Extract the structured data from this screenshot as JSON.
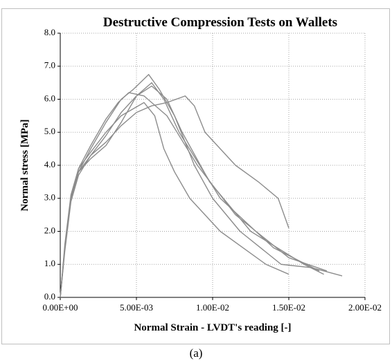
{
  "chart_data": {
    "type": "line",
    "title": "Destructive Compression Tests on Wallets",
    "x_label": "Normal Strain - LVDT's  reading [-]",
    "y_label": "Normal stress [MPa]",
    "xlim": [
      0,
      0.02
    ],
    "ylim": [
      0,
      8
    ],
    "xticks": [
      {
        "value": 0,
        "label": "0.00E+00"
      },
      {
        "value": 0.005,
        "label": "5.00E-03"
      },
      {
        "value": 0.01,
        "label": "1.00E-02"
      },
      {
        "value": 0.015,
        "label": "1.50E-02"
      },
      {
        "value": 0.02,
        "label": "2.00E-02"
      }
    ],
    "yticks": [
      {
        "value": 0,
        "label": "0.0"
      },
      {
        "value": 1,
        "label": "1.0"
      },
      {
        "value": 2,
        "label": "2.0"
      },
      {
        "value": 3,
        "label": "3.0"
      },
      {
        "value": 4,
        "label": "4.0"
      },
      {
        "value": 5,
        "label": "5.0"
      },
      {
        "value": 6,
        "label": "6.0"
      },
      {
        "value": 7,
        "label": "7.0"
      },
      {
        "value": 8,
        "label": "8.0"
      }
    ],
    "grid": true,
    "series": [
      {
        "color": "#8c8c8c",
        "x": [
          0,
          0.0003,
          0.0007,
          0.0012,
          0.002,
          0.003,
          0.004,
          0.005,
          0.006,
          0.007,
          0.0082,
          0.0088,
          0.0095,
          0.0105,
          0.0115,
          0.013,
          0.0143,
          0.015
        ],
        "values": [
          0,
          1.5,
          3.0,
          3.8,
          4.3,
          4.7,
          5.2,
          5.6,
          5.8,
          5.9,
          6.1,
          5.8,
          5.0,
          4.5,
          4.0,
          3.5,
          3.0,
          2.1
        ]
      },
      {
        "color": "#8c8c8c",
        "x": [
          0,
          0.0003,
          0.0007,
          0.0012,
          0.002,
          0.003,
          0.004,
          0.0055,
          0.0062,
          0.0068,
          0.0075,
          0.0085,
          0.0105,
          0.0135,
          0.015
        ],
        "values": [
          0,
          1.6,
          3.1,
          3.9,
          4.4,
          5.0,
          5.5,
          5.9,
          5.5,
          4.5,
          3.8,
          3.0,
          2.0,
          1.0,
          0.7
        ]
      },
      {
        "color": "#8c8c8c",
        "x": [
          0,
          0.0003,
          0.0007,
          0.0012,
          0.002,
          0.003,
          0.004,
          0.0048,
          0.0058,
          0.0065,
          0.0075,
          0.0088,
          0.01,
          0.0118,
          0.0145,
          0.0165,
          0.0185
        ],
        "values": [
          0,
          1.5,
          3.0,
          3.8,
          4.5,
          5.3,
          6.0,
          6.3,
          6.75,
          6.3,
          5.5,
          4.0,
          3.0,
          2.0,
          1.0,
          0.9,
          0.65
        ]
      },
      {
        "color": "#8c8c8c",
        "x": [
          0,
          0.0003,
          0.0007,
          0.0012,
          0.002,
          0.003,
          0.004,
          0.005,
          0.006,
          0.007,
          0.008,
          0.0098,
          0.0125,
          0.016,
          0.0173
        ],
        "values": [
          0,
          1.4,
          2.9,
          3.7,
          4.3,
          4.9,
          5.6,
          6.1,
          6.4,
          6.0,
          5.0,
          3.5,
          2.0,
          1.0,
          0.7
        ]
      },
      {
        "color": "#8c8c8c",
        "x": [
          0,
          0.0003,
          0.0007,
          0.0012,
          0.002,
          0.003,
          0.0038,
          0.0045,
          0.0055,
          0.007,
          0.009,
          0.0115,
          0.015,
          0.0175
        ],
        "values": [
          0,
          1.5,
          3.0,
          3.9,
          4.6,
          5.4,
          5.9,
          6.2,
          6.1,
          5.5,
          4.0,
          2.5,
          1.2,
          0.8
        ]
      },
      {
        "color": "#8c8c8c",
        "x": [
          0,
          0.0003,
          0.0007,
          0.0012,
          0.002,
          0.003,
          0.004,
          0.005,
          0.006,
          0.0068,
          0.0078,
          0.0105,
          0.014,
          0.017
        ],
        "values": [
          0,
          1.5,
          3.0,
          3.8,
          4.2,
          4.6,
          5.3,
          6.1,
          6.5,
          6.0,
          5.0,
          3.0,
          1.5,
          0.8
        ]
      }
    ]
  },
  "caption": "(a)"
}
